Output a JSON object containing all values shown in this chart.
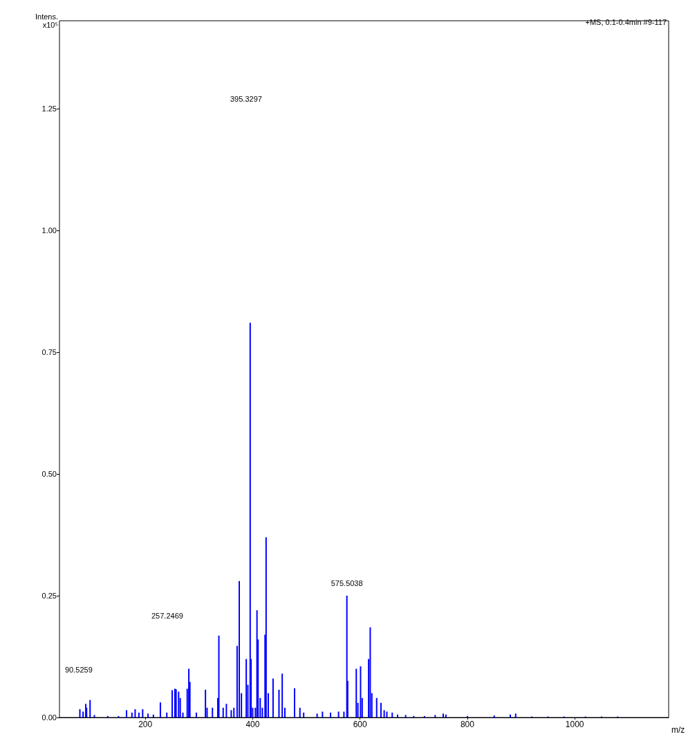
{
  "chart_data": {
    "type": "bar",
    "color": "#0000ff",
    "x": [
      78,
      84,
      89,
      90.5259,
      97,
      105,
      130,
      150,
      165,
      175,
      181,
      188,
      195,
      205,
      215,
      228,
      240,
      250,
      255,
      257.2469,
      262,
      265,
      270,
      278,
      281,
      283,
      295,
      312,
      315,
      325,
      335,
      337,
      345,
      351,
      360,
      365,
      371,
      375,
      379,
      388,
      391,
      395.3297,
      397,
      400,
      405,
      408,
      410,
      414,
      418,
      423,
      425,
      429,
      438,
      449,
      455,
      460,
      478,
      488,
      495,
      520,
      530,
      545,
      560,
      570,
      575.5038,
      577,
      593,
      596,
      601,
      604,
      616,
      619,
      622,
      631,
      639,
      645,
      650,
      660,
      670,
      685,
      700,
      720,
      740,
      755,
      760,
      800,
      850,
      880,
      890,
      920,
      950,
      980,
      1020,
      1050,
      1080
    ],
    "values": [
      0.017,
      0.012,
      0.028,
      0.02,
      0.036,
      0.005,
      0.003,
      0.003,
      0.015,
      0.01,
      0.017,
      0.01,
      0.017,
      0.008,
      0.006,
      0.031,
      0.01,
      0.056,
      0.059,
      0.058,
      0.053,
      0.04,
      0.01,
      0.059,
      0.1,
      0.073,
      0.01,
      0.057,
      0.02,
      0.02,
      0.04,
      0.168,
      0.02,
      0.028,
      0.015,
      0.02,
      0.147,
      0.28,
      0.05,
      0.12,
      0.067,
      0.81,
      0.12,
      0.02,
      0.02,
      0.22,
      0.16,
      0.04,
      0.02,
      0.17,
      0.37,
      0.05,
      0.08,
      0.057,
      0.09,
      0.02,
      0.06,
      0.02,
      0.01,
      0.008,
      0.012,
      0.01,
      0.012,
      0.012,
      0.25,
      0.075,
      0.1,
      0.03,
      0.105,
      0.04,
      0.12,
      0.185,
      0.05,
      0.04,
      0.03,
      0.015,
      0.012,
      0.01,
      0.006,
      0.005,
      0.003,
      0.003,
      0.005,
      0.008,
      0.006,
      0.003,
      0.004,
      0.006,
      0.008,
      0.002,
      0.002,
      0.002,
      0.002,
      0.002,
      0.002
    ],
    "xlabel": "m/z",
    "ylabel": "Intens.\nx10⁵",
    "xlim": [
      40,
      1175
    ],
    "xticks": [
      200,
      400,
      600,
      800,
      1000
    ],
    "ylim": [
      0,
      1.43
    ],
    "yticks": [
      {
        "value": 0,
        "label": "0.00"
      },
      {
        "value": 0.25,
        "label": "0.25"
      },
      {
        "value": 0.5,
        "label": "0.50"
      },
      {
        "value": 0.75,
        "label": "0.75"
      },
      {
        "value": 1,
        "label": "1.00"
      },
      {
        "value": 1.25,
        "label": "1.25"
      }
    ],
    "annotations": [
      "+MS, 0.1-0.4min #9-117",
      "90.5259",
      "257.2469",
      "395.3297",
      {
        "text": "575.5038",
        "x": 575.5038,
        "y": 0.25
      }
    ],
    "grid": false
  }
}
